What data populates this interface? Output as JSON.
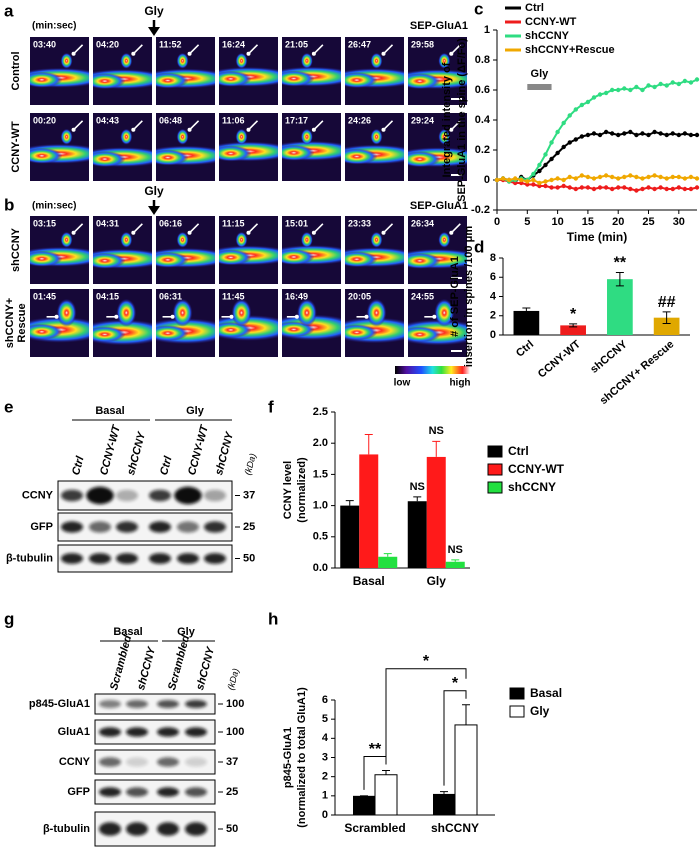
{
  "panel_labels": [
    "a",
    "b",
    "c",
    "d",
    "e",
    "f",
    "g",
    "h"
  ],
  "panel_a": {
    "unit": "(min:sec)",
    "stimulus": "Gly",
    "reporter": "SEP-GluA1",
    "rows": [
      {
        "label": [
          "Control"
        ],
        "times": [
          "03:40",
          "04:20",
          "11:52",
          "16:24",
          "21:05",
          "26:47",
          "29:58"
        ]
      },
      {
        "label": [
          "CCNY-WT"
        ],
        "times": [
          "00:20",
          "04:43",
          "06:48",
          "11:06",
          "17:17",
          "24:26",
          "29:24"
        ]
      }
    ]
  },
  "panel_b": {
    "unit": "(min:sec)",
    "stimulus": "Gly",
    "reporter": "SEP-GluA1",
    "rows": [
      {
        "label": [
          "shCCNY"
        ],
        "times": [
          "03:15",
          "04:31",
          "06:16",
          "11:15",
          "15:01",
          "23:33",
          "26:34"
        ]
      },
      {
        "label": [
          "shCCNY+",
          "Rescue"
        ],
        "times": [
          "01:45",
          "04:15",
          "06:31",
          "11:45",
          "16:49",
          "20:05",
          "24:55"
        ]
      }
    ],
    "colorbar": {
      "low": "low",
      "high": "high"
    }
  },
  "panel_e": {
    "groups": [
      "Basal",
      "Gly"
    ],
    "lanes": [
      "Ctrl",
      "CCNY-WT",
      "shCCNY",
      "Ctrl",
      "CCNY-WT",
      "shCCNY"
    ],
    "unit": "(kDa)",
    "rows": [
      {
        "label": "CCNY",
        "kda": 37
      },
      {
        "label": "GFP",
        "kda": 25
      },
      {
        "label": "β-tubulin",
        "kda": 50
      }
    ]
  },
  "panel_g": {
    "groups": [
      "Basal",
      "Gly"
    ],
    "lanes": [
      "Scrambled",
      "shCCNY",
      "Scrambled",
      "shCCNY"
    ],
    "unit": "(kDa)",
    "rows": [
      {
        "label": "p845-GluA1",
        "kda": 100
      },
      {
        "label": "GluA1",
        "kda": 100
      },
      {
        "label": "CCNY",
        "kda": 37
      },
      {
        "label": "GFP",
        "kda": 25
      },
      {
        "label": "β-tubulin",
        "kda": 50
      }
    ]
  },
  "chart_data": [
    {
      "type": "line",
      "ylabel": [
        "Integrated intensity of",
        "SEP-GluA1 in the spine (ΔF/Fo)"
      ],
      "xlabel": "Time (min)",
      "x": [
        0,
        1,
        2,
        3,
        4,
        5,
        6,
        7,
        8,
        9,
        10,
        11,
        12,
        13,
        14,
        15,
        16,
        17,
        18,
        19,
        20,
        21,
        22,
        23,
        24,
        25,
        26,
        27,
        28,
        29,
        30,
        31,
        32,
        33
      ],
      "xlim": [
        0,
        33
      ],
      "xticks": [
        0,
        5,
        10,
        15,
        20,
        25,
        30
      ],
      "ylim": [
        -0.2,
        1
      ],
      "yticks": [
        -0.2,
        0,
        0.2,
        0.4,
        0.6,
        0.8,
        1
      ],
      "legend": "upper left",
      "stimulus": {
        "label": "Gly",
        "start": 5,
        "end": 9
      },
      "series": [
        {
          "name": "Ctrl",
          "color": "#000000",
          "values": [
            0,
            0.01,
            0,
            -0.01,
            0.02,
            0,
            0.03,
            0.06,
            0.1,
            0.14,
            0.18,
            0.22,
            0.25,
            0.27,
            0.29,
            0.3,
            0.31,
            0.3,
            0.32,
            0.31,
            0.3,
            0.31,
            0.32,
            0.3,
            0.31,
            0.3,
            0.32,
            0.31,
            0.3,
            0.31,
            0.3,
            0.31,
            0.3,
            0.3
          ]
        },
        {
          "name": "CCNY-WT",
          "color": "#ee1c1c",
          "values": [
            0,
            0,
            -0.01,
            -0.02,
            -0.02,
            -0.03,
            -0.03,
            -0.04,
            -0.04,
            -0.05,
            -0.05,
            -0.04,
            -0.05,
            -0.06,
            -0.05,
            -0.05,
            -0.06,
            -0.05,
            -0.05,
            -0.06,
            -0.05,
            -0.05,
            -0.06,
            -0.07,
            -0.06,
            -0.05,
            -0.06,
            -0.05,
            -0.06,
            -0.06,
            -0.05,
            -0.06,
            -0.06,
            -0.05
          ]
        },
        {
          "name": "shCCNY",
          "color": "#2fdc82",
          "values": [
            0,
            0.01,
            -0.01,
            0,
            0.01,
            0,
            0.04,
            0.1,
            0.17,
            0.25,
            0.32,
            0.38,
            0.43,
            0.47,
            0.5,
            0.52,
            0.55,
            0.57,
            0.58,
            0.6,
            0.6,
            0.61,
            0.6,
            0.62,
            0.6,
            0.63,
            0.62,
            0.64,
            0.63,
            0.65,
            0.64,
            0.66,
            0.65,
            0.67
          ]
        },
        {
          "name": "shCCNY+Rescue",
          "color": "#f0a800",
          "values": [
            0,
            0.01,
            0,
            0.01,
            0,
            -0.01,
            0,
            -0.02,
            -0.01,
            0,
            0.01,
            0,
            0.02,
            0.01,
            0.03,
            0.02,
            0.01,
            0.02,
            0.03,
            0.02,
            0.01,
            0.02,
            0.03,
            0.02,
            0.01,
            0.02,
            0.03,
            0.02,
            0.01,
            0.02,
            0.02,
            0.01,
            0.02,
            0.01
          ]
        }
      ]
    },
    {
      "type": "bar",
      "ylabel": [
        "# of SEP-GluA1",
        "insertion in spines /100 μm"
      ],
      "categories": [
        "Ctrl",
        "CCNY-WT",
        "shCCNY",
        "shCCNY+ Rescue"
      ],
      "values": [
        2.5,
        1.0,
        5.8,
        1.8
      ],
      "errors": [
        0.3,
        0.15,
        0.7,
        0.6
      ],
      "colors": [
        "#000000",
        "#ee1c1c",
        "#2fdc82",
        "#e0a800"
      ],
      "annotations": [
        null,
        "*",
        "**",
        "##"
      ],
      "ylim": [
        0,
        8
      ],
      "yticks": [
        0,
        2,
        4,
        6,
        8
      ]
    },
    {
      "type": "grouped_bar",
      "ylabel": [
        "CCNY level",
        "(normalized)"
      ],
      "categories": [
        "Basal",
        "Gly"
      ],
      "ylim": [
        0,
        2.5
      ],
      "yticks": [
        {
          "value": 0,
          "label": "0.0"
        },
        0.5,
        {
          "value": 1,
          "label": "1.0"
        },
        1.5,
        {
          "value": 2,
          "label": "2.0"
        },
        2.5
      ],
      "legend": "right",
      "series": [
        {
          "name": "Ctrl",
          "color": "#000000",
          "values": [
            1.0,
            1.07
          ],
          "errors": [
            0.08,
            0.07
          ],
          "annotations": [
            null,
            "NS"
          ]
        },
        {
          "name": "CCNY-WT",
          "color": "#ff1a1a",
          "values": [
            1.82,
            1.78
          ],
          "errors": [
            0.32,
            0.25
          ],
          "annotations": [
            null,
            "NS"
          ]
        },
        {
          "name": "shCCNY",
          "color": "#22e040",
          "values": [
            0.18,
            0.1
          ],
          "errors": [
            0.05,
            0.03
          ],
          "annotations": [
            null,
            "NS"
          ]
        }
      ]
    },
    {
      "type": "grouped_bar",
      "ylabel": [
        "p845-GluA1",
        "(normalized to total GluA1)"
      ],
      "categories": [
        "Scrambled",
        "shCCNY"
      ],
      "ylim": [
        0,
        6
      ],
      "yticks": [
        0,
        1,
        2,
        3,
        4,
        5,
        6
      ],
      "legend": "upper right",
      "series": [
        {
          "name": "Basal",
          "color": "#000000",
          "values": [
            1.0,
            1.1
          ],
          "errors": [
            0,
            0.12
          ]
        },
        {
          "name": "Gly",
          "color": "#ffffff",
          "values": [
            2.1,
            4.7
          ],
          "errors": [
            0.22,
            1.05
          ]
        }
      ],
      "significance": [
        "**",
        "*",
        "*"
      ]
    }
  ]
}
